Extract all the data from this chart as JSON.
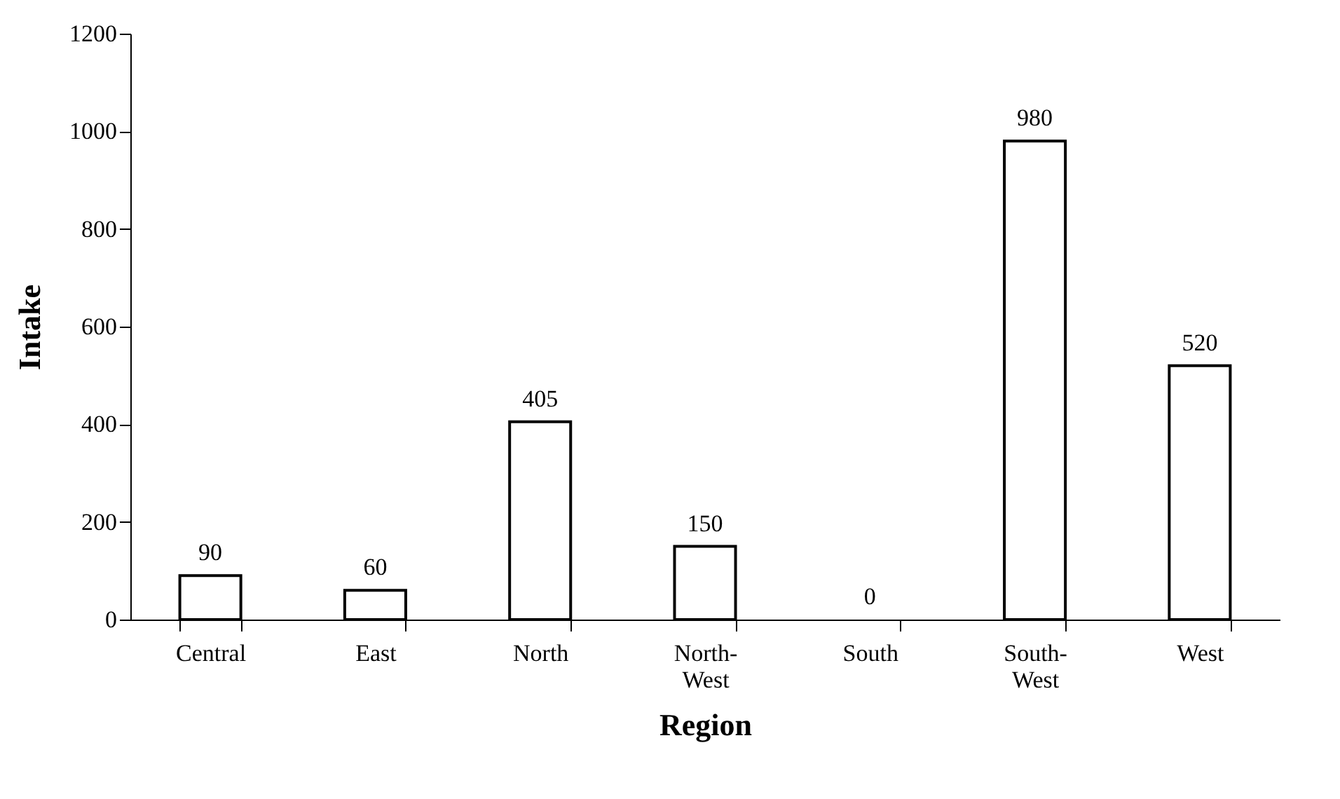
{
  "chart_data": {
    "type": "bar",
    "xlabel": "Region",
    "ylabel": "Intake",
    "categories": [
      "Central",
      "East",
      "North",
      "North-West",
      "South",
      "South-West",
      "West"
    ],
    "values": [
      90,
      60,
      405,
      150,
      0,
      980,
      520
    ],
    "color": "#ffffff",
    "ylim": [
      0,
      1200
    ],
    "yticks": [
      0,
      200,
      400,
      600,
      800,
      1000,
      1200
    ],
    "grid": false,
    "data_labels": true
  }
}
